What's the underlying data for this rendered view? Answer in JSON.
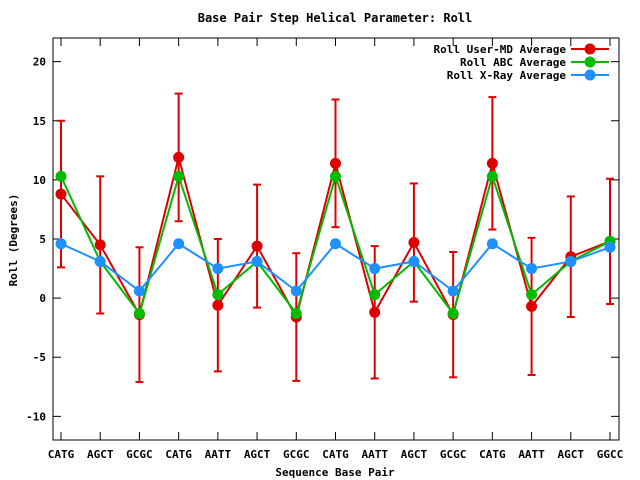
{
  "chart_data": {
    "type": "line",
    "title": "Base Pair Step Helical Parameter: Roll",
    "xlabel": "Sequence Base Pair",
    "ylabel": "Roll (Degrees)",
    "ylim": [
      -12,
      22
    ],
    "yticks": [
      -10,
      -5,
      0,
      5,
      10,
      15,
      20
    ],
    "categories": [
      "CATG",
      "AGCT",
      "GCGC",
      "CATG",
      "AATT",
      "AGCT",
      "GCGC",
      "CATG",
      "AATT",
      "AGCT",
      "GCGC",
      "CATG",
      "AATT",
      "AGCT",
      "GGCC"
    ],
    "legend_position": "top-right",
    "grid": false,
    "series": [
      {
        "name": "Roll User-MD Average",
        "color": "#dd0000",
        "values": [
          8.8,
          4.5,
          -1.4,
          11.9,
          -0.6,
          4.4,
          -1.6,
          11.4,
          -1.2,
          4.7,
          -1.4,
          11.4,
          -0.7,
          3.5,
          4.8
        ],
        "error": [
          6.2,
          5.8,
          5.7,
          5.4,
          5.6,
          5.2,
          5.4,
          5.4,
          5.6,
          5.0,
          5.3,
          5.6,
          5.8,
          5.1,
          5.3
        ]
      },
      {
        "name": "Roll ABC Average",
        "color": "#00bb00",
        "values": [
          10.3,
          3.1,
          -1.3,
          10.3,
          0.3,
          3.1,
          -1.3,
          10.3,
          0.3,
          3.1,
          -1.3,
          10.3,
          0.3,
          3.1,
          4.8
        ]
      },
      {
        "name": "Roll X-Ray Average",
        "color": "#1e90ff",
        "values": [
          4.6,
          3.1,
          0.6,
          4.6,
          2.5,
          3.1,
          0.6,
          4.6,
          2.5,
          3.1,
          0.6,
          4.6,
          2.5,
          3.1,
          4.3
        ]
      }
    ]
  }
}
